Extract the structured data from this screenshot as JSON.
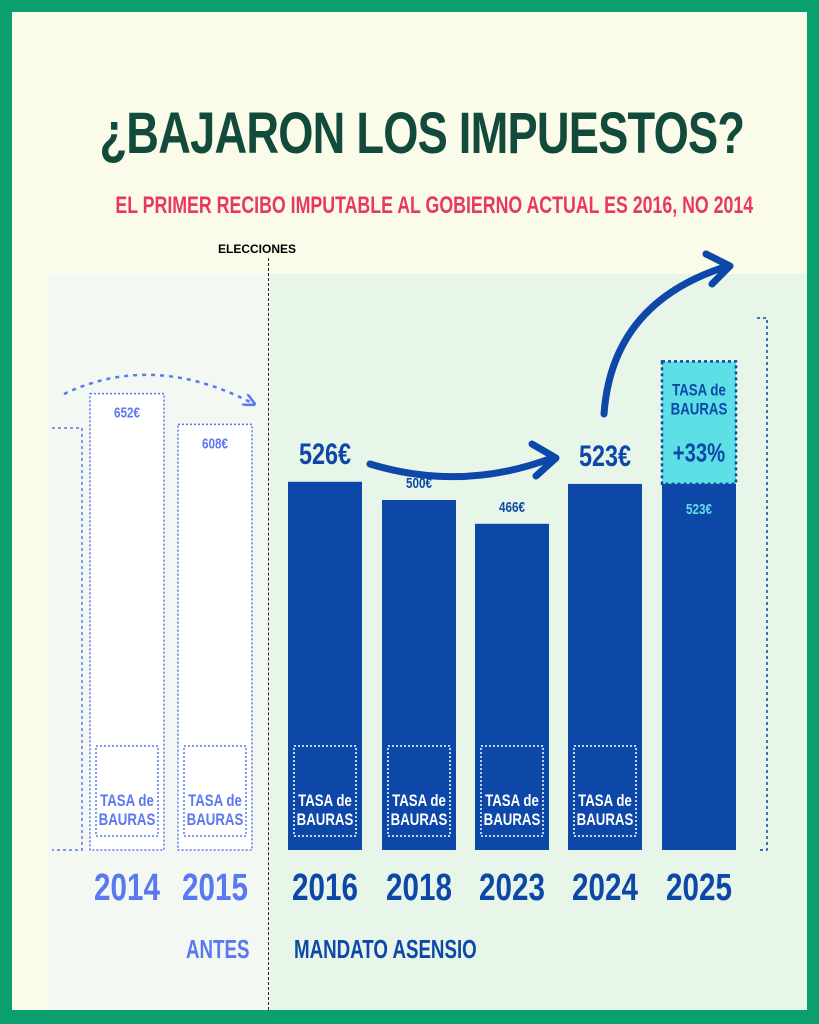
{
  "title": "¿BAJARON LOS IMPUESTOS?",
  "subtitle": "EL PRIMER RECIBO IMPUTABLE AL GOBIERNO ACTUAL ES 2016, NO 2014",
  "divider_label": "ELECCIONES",
  "period_labels": {
    "before": "ANTES",
    "after": "MANDATO ASENSIO"
  },
  "colors": {
    "primary_bar": "#0d47a8",
    "ghost_outline": "#5a78f0",
    "increase_fill": "#5ce0e6",
    "increase_text": "#0d47a8",
    "subtitle": "#e73a5b",
    "title": "#124a3c",
    "border": "#0aa06e"
  },
  "chart_data": {
    "type": "bar",
    "title": "¿BAJARON LOS IMPUESTOS?",
    "categories": [
      "2014",
      "2015",
      "2016",
      "2018",
      "2023",
      "2024",
      "2025"
    ],
    "values": [
      652,
      608,
      526,
      500,
      466,
      523,
      698
    ],
    "unit": "€",
    "bars": [
      {
        "year": "2014",
        "value": 652,
        "label": "652€",
        "style": "ghost",
        "tasa_label": "TASA de BAURAS"
      },
      {
        "year": "2015",
        "value": 608,
        "label": "608€",
        "style": "ghost",
        "tasa_label": "TASA de BAURAS"
      },
      {
        "year": "2016",
        "value": 526,
        "label": "526€",
        "style": "solid",
        "tasa_label": "TASA de BAURAS"
      },
      {
        "year": "2018",
        "value": 500,
        "label": "500€",
        "style": "solid",
        "tasa_label": "TASA de BAURAS"
      },
      {
        "year": "2023",
        "value": 466,
        "label": "466€",
        "style": "solid",
        "tasa_label": "TASA de BAURAS"
      },
      {
        "year": "2024",
        "value": 523,
        "label": "523€",
        "style": "solid",
        "tasa_label": "TASA de BAURAS"
      },
      {
        "year": "2025",
        "value": 523,
        "label": "523€",
        "style": "solid",
        "tasa_label": ""
      }
    ],
    "increase": {
      "year": "2025",
      "label": "TASA de BAURAS",
      "change": "+33%",
      "base": 523,
      "total": 698
    },
    "ylim": [
      0,
      720
    ],
    "grid": false,
    "legend": "none"
  }
}
